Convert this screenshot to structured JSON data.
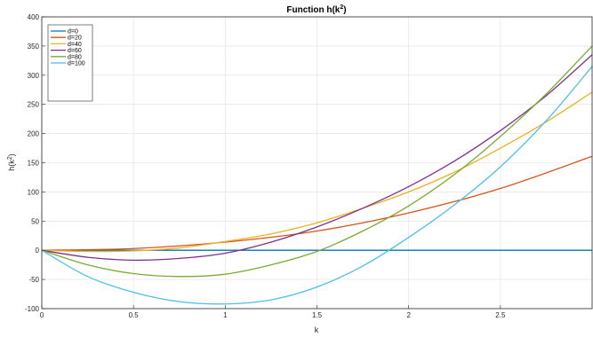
{
  "chart_data": {
    "type": "line",
    "title": "Function h(k",
    "title_sup": "2",
    "title_end": ")",
    "xlabel": "k",
    "ylabel": "h(k",
    "ylabel_sup": "2",
    "ylabel_end": ")",
    "xlim": [
      0,
      3
    ],
    "ylim": [
      -100,
      400
    ],
    "xticks": [
      0,
      0.5,
      1,
      1.5,
      2,
      2.5
    ],
    "xtick_labels": [
      "0",
      "0.5",
      "1",
      "1.5",
      "2",
      "2.5"
    ],
    "yticks": [
      -100,
      -50,
      0,
      50,
      100,
      150,
      200,
      250,
      300,
      350,
      400
    ],
    "ytick_labels": [
      "-100",
      "-50",
      "0",
      "50",
      "100",
      "150",
      "200",
      "250",
      "300",
      "350",
      "400"
    ],
    "grid": true,
    "legend_position": "top-left",
    "series": [
      {
        "name": "d=0",
        "color": "#0072BD",
        "x": [
          0,
          0.5,
          1,
          1.5,
          2,
          2.5,
          3
        ],
        "y": [
          0,
          0,
          0,
          0,
          0,
          0,
          0
        ]
      },
      {
        "name": "d=20",
        "color": "#D95319",
        "x": [
          0,
          0.5,
          1,
          1.5,
          2,
          2.5,
          3
        ],
        "y": [
          0,
          3,
          14,
          33,
          64,
          106,
          161
        ]
      },
      {
        "name": "d=40",
        "color": "#EDB120",
        "x": [
          0,
          0.25,
          0.5,
          0.75,
          1,
          1.25,
          1.5,
          1.75,
          2,
          2.25,
          2.5,
          2.75,
          3
        ],
        "y": [
          0,
          -2,
          -1,
          4,
          15,
          28,
          47,
          72,
          100,
          134,
          175,
          220,
          271
        ]
      },
      {
        "name": "d=60",
        "color": "#7E2F8E",
        "x": [
          0,
          0.25,
          0.5,
          0.75,
          1,
          1.25,
          1.5,
          1.75,
          2,
          2.25,
          2.5,
          2.75,
          3
        ],
        "y": [
          0,
          -12,
          -17,
          -14,
          -5,
          14,
          40,
          72,
          109,
          153,
          205,
          265,
          335
        ]
      },
      {
        "name": "d=80",
        "color": "#77AC30",
        "x": [
          0,
          0.25,
          0.5,
          0.75,
          1,
          1.25,
          1.5,
          1.75,
          2,
          2.25,
          2.5,
          2.75,
          3
        ],
        "y": [
          0,
          -25,
          -40,
          -45,
          -41,
          -25,
          -2,
          33,
          76,
          130,
          195,
          268,
          350
        ]
      },
      {
        "name": "d=100",
        "color": "#4DBEEE",
        "x": [
          0,
          0.25,
          0.5,
          0.75,
          1,
          1.25,
          1.5,
          1.75,
          2,
          2.25,
          2.5,
          2.75,
          3
        ],
        "y": [
          0,
          -45,
          -72,
          -88,
          -92,
          -85,
          -63,
          -27,
          22,
          78,
          143,
          222,
          315
        ]
      }
    ]
  }
}
